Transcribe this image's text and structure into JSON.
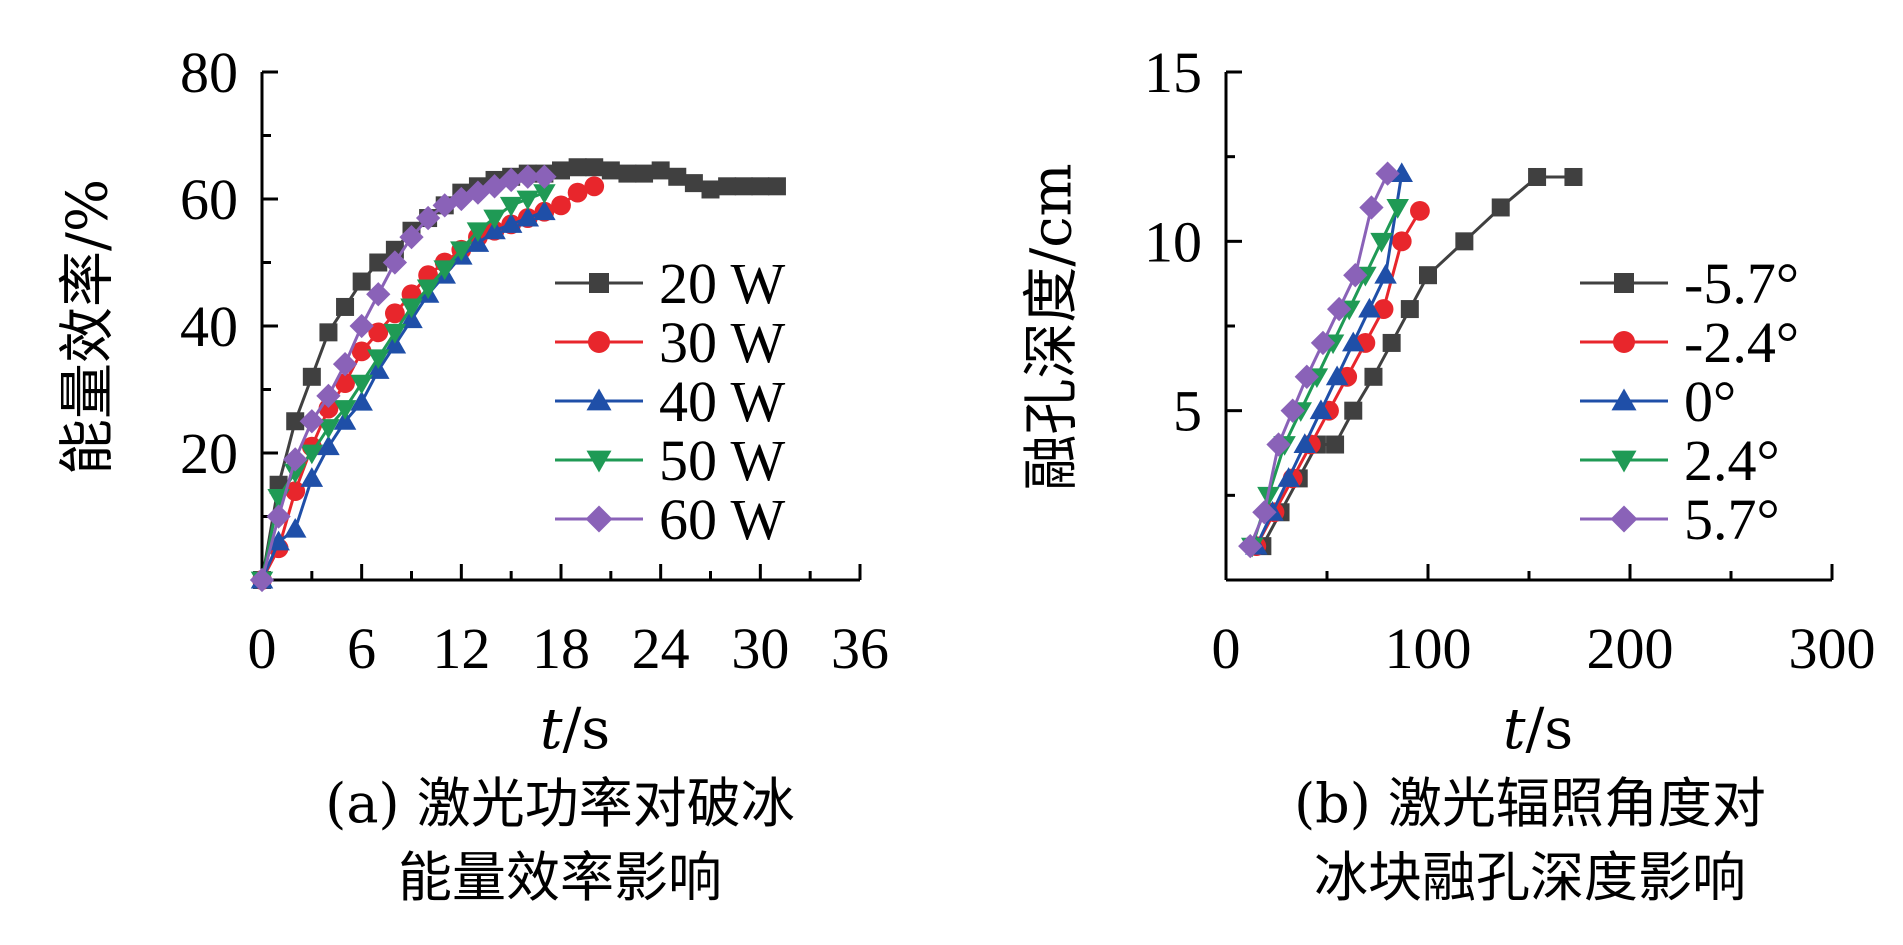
{
  "chart_data": [
    {
      "type": "line",
      "xlabel_italic": "t",
      "xlabel_rest": "/s",
      "ylabel": "能量效率/%",
      "xlim": [
        0,
        36
      ],
      "ylim": [
        0,
        80
      ],
      "xticks": [
        0,
        6,
        12,
        18,
        24,
        30,
        36
      ],
      "yticks": [
        20,
        40,
        60,
        80
      ],
      "legend_position": "right-middle",
      "caption": [
        "(a) 激光功率对破冰",
        "能量效率影响"
      ],
      "series": [
        {
          "name": "20 W",
          "color": "#404040",
          "marker": "square",
          "x": [
            0,
            1,
            2,
            3,
            4,
            5,
            6,
            7,
            8,
            9,
            10,
            11,
            12,
            13,
            14,
            15,
            16,
            17,
            18,
            19,
            20,
            21,
            22,
            23,
            24,
            25,
            26,
            27,
            28,
            29,
            30,
            31
          ],
          "y": [
            0,
            15,
            25,
            32,
            39,
            43,
            47,
            50,
            52,
            55,
            57,
            59,
            61,
            62,
            63,
            63.5,
            64,
            64,
            64.5,
            65,
            65,
            64.5,
            64,
            64,
            64.5,
            63.5,
            62.5,
            61.5,
            62,
            62,
            62,
            62
          ]
        },
        {
          "name": "30 W",
          "color": "#e8262c",
          "marker": "circle",
          "x": [
            0,
            1,
            2,
            3,
            4,
            5,
            6,
            7,
            8,
            9,
            10,
            11,
            12,
            13,
            14,
            15,
            16,
            17,
            18,
            19,
            20
          ],
          "y": [
            0,
            5,
            14,
            21,
            27,
            31,
            36,
            39,
            42,
            45,
            48,
            50,
            52,
            54,
            55,
            56,
            57,
            58,
            59,
            61,
            62
          ]
        },
        {
          "name": "40 W",
          "color": "#1f4fa8",
          "marker": "triangle-up",
          "x": [
            0,
            1,
            2,
            3,
            4,
            5,
            6,
            7,
            8,
            9,
            10,
            11,
            12,
            13,
            14,
            15,
            16,
            17
          ],
          "y": [
            0,
            6,
            8,
            16,
            21,
            25,
            28,
            33,
            37,
            41,
            45,
            48,
            51,
            53,
            55,
            56,
            57,
            58
          ]
        },
        {
          "name": "50 W",
          "color": "#1f9a55",
          "marker": "triangle-down",
          "x": [
            0,
            1,
            2,
            3,
            4,
            5,
            6,
            7,
            8,
            9,
            10,
            11,
            12,
            13,
            14,
            15,
            16,
            17
          ],
          "y": [
            0,
            13,
            17,
            20,
            24,
            27,
            31,
            35,
            39,
            43,
            46,
            49,
            52,
            55,
            57,
            59,
            60,
            61
          ]
        },
        {
          "name": "60 W",
          "color": "#8a62b8",
          "marker": "diamond",
          "x": [
            0,
            1,
            2,
            3,
            4,
            5,
            6,
            7,
            8,
            9,
            10,
            11,
            12,
            13,
            14,
            15,
            16,
            17
          ],
          "y": [
            0,
            10,
            19,
            25,
            29,
            34,
            40,
            45,
            50,
            54,
            57,
            59,
            60,
            61,
            62,
            63,
            63.5,
            63.5
          ]
        }
      ]
    },
    {
      "type": "line",
      "xlabel_italic": "t",
      "xlabel_rest": "/s",
      "ylabel": "融孔深度/cm",
      "xlim": [
        0,
        300
      ],
      "ylim": [
        0,
        15
      ],
      "xticks": [
        0,
        100,
        200,
        300
      ],
      "yticks": [
        5,
        10,
        15
      ],
      "legend_position": "right-middle",
      "caption": [
        "(b) 激光辐照角度对",
        "冰块融孔深度影响"
      ],
      "series": [
        {
          "name": "-5.7°",
          "color": "#404040",
          "marker": "square",
          "x": [
            18,
            27,
            36,
            45,
            54,
            63,
            73,
            82,
            91,
            100,
            118,
            136,
            154,
            172
          ],
          "y": [
            1,
            2,
            3,
            4,
            4,
            5,
            6,
            7,
            8,
            9,
            10,
            11,
            11.9,
            11.9
          ]
        },
        {
          "name": "-2.4°",
          "color": "#e8262c",
          "marker": "circle",
          "x": [
            15,
            24,
            33,
            42,
            51,
            60,
            69,
            78,
            87,
            96
          ],
          "y": [
            1,
            2,
            3,
            4,
            5,
            6,
            7,
            8,
            10,
            10.9
          ]
        },
        {
          "name": "0°",
          "color": "#1f4fa8",
          "marker": "triangle-up",
          "x": [
            15,
            23,
            31,
            39,
            47,
            55,
            63,
            71,
            79,
            87
          ],
          "y": [
            1,
            2,
            3,
            4,
            5,
            6,
            7,
            8,
            9,
            12
          ]
        },
        {
          "name": "2.4°",
          "color": "#1f9a55",
          "marker": "triangle-down",
          "x": [
            13,
            21,
            29,
            37,
            45,
            53,
            61,
            69,
            77,
            85
          ],
          "y": [
            1,
            2.5,
            4,
            5,
            6,
            7,
            8,
            9,
            10,
            11
          ]
        },
        {
          "name": "5.7°",
          "color": "#8a62b8",
          "marker": "diamond",
          "x": [
            12,
            19,
            26,
            33,
            40,
            48,
            56,
            64,
            72,
            80
          ],
          "y": [
            1,
            2,
            4,
            5,
            6,
            7,
            8,
            9,
            11,
            12
          ]
        }
      ]
    }
  ]
}
